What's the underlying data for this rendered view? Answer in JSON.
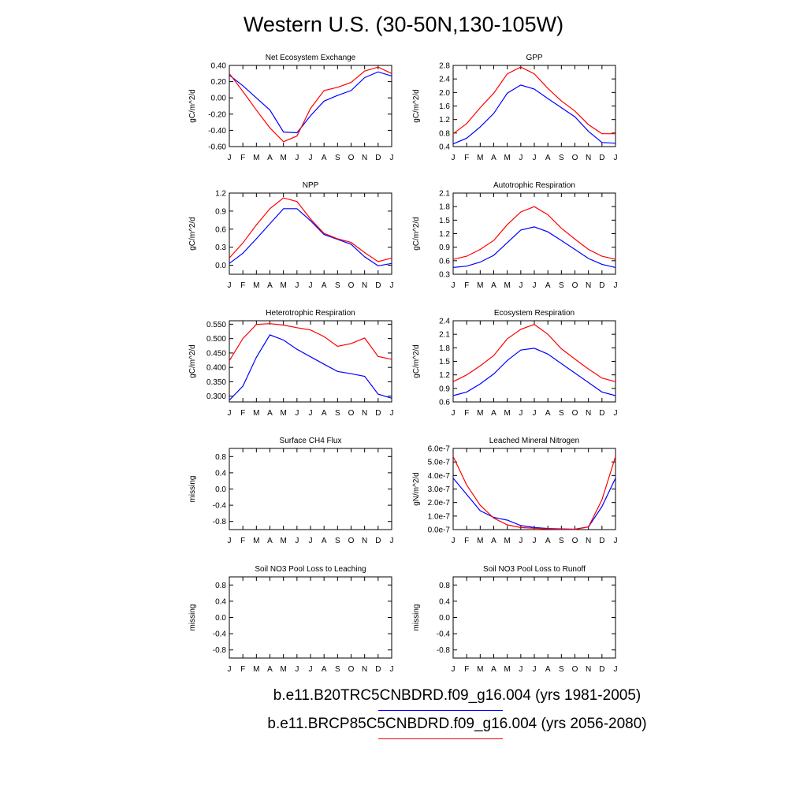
{
  "title": "Western U.S. (30-50N,130-105W)",
  "months": [
    "J",
    "F",
    "M",
    "A",
    "M",
    "J",
    "J",
    "A",
    "S",
    "O",
    "N",
    "D",
    "J"
  ],
  "legend": [
    {
      "label": "b.e11.B20TRC5CNBDRD.f09_g16.004 (yrs 1981-2005)",
      "color": "#0000ff"
    },
    {
      "label": "b.e11.BRCP85C5CNBDRD.f09_g16.004 (yrs 2056-2080)",
      "color": "#ff0000"
    }
  ],
  "colors": {
    "series1": "#0000ff",
    "series2": "#ff0000",
    "axis": "#000000"
  },
  "chart_data": [
    {
      "type": "line",
      "title": "Net Ecosystem Exchange",
      "ylabel": "gC/m^2/d",
      "ylim": [
        -0.6,
        0.4
      ],
      "yticks": [
        "0.40",
        "0.20",
        "0.00",
        "-0.20",
        "-0.40",
        "-0.60"
      ],
      "ytick_values": [
        0.4,
        0.2,
        0.0,
        -0.2,
        -0.4,
        -0.6
      ],
      "series": [
        {
          "values": [
            0.28,
            0.15,
            0.0,
            -0.15,
            -0.42,
            -0.43,
            -0.22,
            -0.04,
            0.03,
            0.09,
            0.25,
            0.32,
            0.27
          ]
        },
        {
          "values": [
            0.3,
            0.08,
            -0.15,
            -0.37,
            -0.54,
            -0.47,
            -0.13,
            0.09,
            0.13,
            0.19,
            0.33,
            0.38,
            0.3
          ]
        }
      ]
    },
    {
      "type": "line",
      "title": "GPP",
      "ylabel": "gC/m^2/d",
      "ylim": [
        0.4,
        2.8
      ],
      "yticks": [
        "2.8",
        "2.4",
        "2.0",
        "1.6",
        "1.2",
        "0.8",
        "0.4"
      ],
      "ytick_values": [
        2.8,
        2.4,
        2.0,
        1.6,
        1.2,
        0.8,
        0.4
      ],
      "series": [
        {
          "values": [
            0.48,
            0.65,
            0.98,
            1.38,
            1.98,
            2.22,
            2.1,
            1.82,
            1.55,
            1.28,
            0.85,
            0.52,
            0.5
          ]
        },
        {
          "values": [
            0.78,
            1.08,
            1.55,
            1.98,
            2.55,
            2.75,
            2.55,
            2.12,
            1.75,
            1.45,
            1.05,
            0.78,
            0.78
          ]
        }
      ]
    },
    {
      "type": "line",
      "title": "NPP",
      "ylabel": "gC/m^2/d",
      "ylim": [
        -0.15,
        1.2
      ],
      "yticks": [
        "1.2",
        "0.9",
        "0.6",
        "0.3",
        "0.0"
      ],
      "ytick_values": [
        1.2,
        0.9,
        0.6,
        0.3,
        0.0
      ],
      "series": [
        {
          "values": [
            0.03,
            0.2,
            0.44,
            0.69,
            0.94,
            0.94,
            0.74,
            0.51,
            0.43,
            0.35,
            0.14,
            -0.01,
            0.03
          ]
        },
        {
          "values": [
            0.12,
            0.37,
            0.67,
            0.94,
            1.12,
            1.06,
            0.77,
            0.53,
            0.44,
            0.38,
            0.21,
            0.06,
            0.12
          ]
        }
      ]
    },
    {
      "type": "line",
      "title": "Autotrophic Respiration",
      "ylabel": "gC/m^2/d",
      "ylim": [
        0.3,
        2.1
      ],
      "yticks": [
        "2.1",
        "1.8",
        "1.5",
        "1.2",
        "0.9",
        "0.6",
        "0.3"
      ],
      "ytick_values": [
        2.1,
        1.8,
        1.5,
        1.2,
        0.9,
        0.6,
        0.3
      ],
      "series": [
        {
          "values": [
            0.45,
            0.48,
            0.57,
            0.72,
            1.0,
            1.28,
            1.35,
            1.24,
            1.05,
            0.85,
            0.65,
            0.52,
            0.45
          ]
        },
        {
          "values": [
            0.63,
            0.7,
            0.85,
            1.05,
            1.4,
            1.68,
            1.8,
            1.62,
            1.32,
            1.08,
            0.85,
            0.7,
            0.63
          ]
        }
      ]
    },
    {
      "type": "line",
      "title": "Heterotrophic Respiration",
      "ylabel": "gC/m^2/d",
      "ylim": [
        0.28,
        0.562
      ],
      "yticks": [
        "0.550",
        "0.500",
        "0.450",
        "0.400",
        "0.350",
        "0.300"
      ],
      "ytick_values": [
        0.55,
        0.5,
        0.45,
        0.4,
        0.35,
        0.3
      ],
      "series": [
        {
          "values": [
            0.286,
            0.335,
            0.435,
            0.513,
            0.495,
            0.463,
            0.437,
            0.411,
            0.386,
            0.378,
            0.369,
            0.307,
            0.293
          ]
        },
        {
          "values": [
            0.423,
            0.5,
            0.549,
            0.552,
            0.547,
            0.538,
            0.53,
            0.507,
            0.473,
            0.483,
            0.502,
            0.438,
            0.428
          ]
        }
      ]
    },
    {
      "type": "line",
      "title": "Ecosystem Respiration",
      "ylabel": "gC/m^2/d",
      "ylim": [
        0.6,
        2.4
      ],
      "yticks": [
        "2.4",
        "2.1",
        "1.8",
        "1.5",
        "1.2",
        "0.9",
        "0.6"
      ],
      "ytick_values": [
        2.4,
        2.1,
        1.8,
        1.5,
        1.2,
        0.9,
        0.6
      ],
      "series": [
        {
          "values": [
            0.74,
            0.82,
            1.0,
            1.22,
            1.52,
            1.75,
            1.79,
            1.66,
            1.45,
            1.24,
            1.03,
            0.82,
            0.74
          ]
        },
        {
          "values": [
            1.05,
            1.2,
            1.4,
            1.63,
            2.0,
            2.21,
            2.32,
            2.1,
            1.78,
            1.55,
            1.33,
            1.13,
            1.05
          ]
        }
      ]
    },
    {
      "type": "line",
      "title": "Surface CH4 Flux",
      "ylabel": "missing",
      "ylim": [
        -1.0,
        1.0
      ],
      "yticks": [
        "0.8",
        "0.4",
        "0.0",
        "-0.4",
        "-0.8"
      ],
      "ytick_values": [
        0.8,
        0.4,
        0.0,
        -0.4,
        -0.8
      ],
      "series": []
    },
    {
      "type": "line",
      "title": "Leached Mineral Nitrogen",
      "ylabel": "gN/m^2/d",
      "ylim": [
        0.0,
        6e-07
      ],
      "yticks": [
        "6.0e-7",
        "5.0e-7",
        "4.0e-7",
        "3.0e-7",
        "2.0e-7",
        "1.0e-7",
        "0.0e-7"
      ],
      "ytick_values": [
        6e-07,
        5e-07,
        4e-07,
        3e-07,
        2e-07,
        1e-07,
        0.0
      ],
      "series": [
        {
          "values": [
            3.8e-07,
            2.6e-07,
            1.4e-07,
            9e-08,
            7e-08,
            3e-08,
            1.5e-08,
            8e-09,
            5e-09,
            3e-09,
            2e-08,
            1.7e-07,
            3.8e-07
          ]
        },
        {
          "values": [
            5.4e-07,
            3.3e-07,
            1.8e-07,
            8.5e-08,
            3.5e-08,
            1.5e-08,
            1e-08,
            5e-09,
            3e-09,
            2e-09,
            2e-08,
            2.2e-07,
            5.4e-07
          ]
        }
      ]
    },
    {
      "type": "line",
      "title": "Soil NO3 Pool Loss to Leaching",
      "ylabel": "missing",
      "ylim": [
        -1.0,
        1.0
      ],
      "yticks": [
        "0.8",
        "0.4",
        "0.0",
        "-0.4",
        "-0.8"
      ],
      "ytick_values": [
        0.8,
        0.4,
        0.0,
        -0.4,
        -0.8
      ],
      "series": []
    },
    {
      "type": "line",
      "title": "Soil NO3 Pool Loss to Runoff",
      "ylabel": "missing",
      "ylim": [
        -1.0,
        1.0
      ],
      "yticks": [
        "0.8",
        "0.4",
        "0.0",
        "-0.4",
        "-0.8"
      ],
      "ytick_values": [
        0.8,
        0.4,
        0.0,
        -0.4,
        -0.8
      ],
      "series": []
    }
  ]
}
